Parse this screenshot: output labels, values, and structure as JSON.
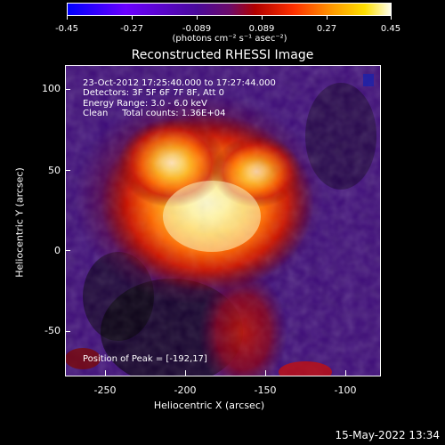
{
  "colorbar": {
    "ticks": [
      "-0.45",
      "-0.27",
      "-0.089",
      "0.089",
      "0.27",
      "0.45"
    ],
    "units": "(photons cm⁻² s⁻¹ asec⁻²)"
  },
  "title": "Reconstructed RHESSI Image",
  "annotations": {
    "time": "23-Oct-2012 17:25:40.000 to 17:27:44.000",
    "detectors": "Detectors: 3F 5F 6F 7F 8F, Att 0",
    "energy": "Energy Range: 3.0 - 6.0 keV",
    "clean": "Clean     Total counts: 1.36E+04",
    "peak": "Position of Peak = [-192,17]"
  },
  "axes": {
    "xlabel": "Heliocentric X (arcsec)",
    "ylabel": "Heliocentric Y (arcsec)",
    "xticks": [
      "-250",
      "-200",
      "-150",
      "-100"
    ],
    "yticks": [
      "100",
      "50",
      "0",
      "-50"
    ]
  },
  "timestamp": "15-May-2022 13:34",
  "colors": {
    "background": "#000000",
    "low": "#3b0a7a",
    "peak": "#ffffcc"
  }
}
